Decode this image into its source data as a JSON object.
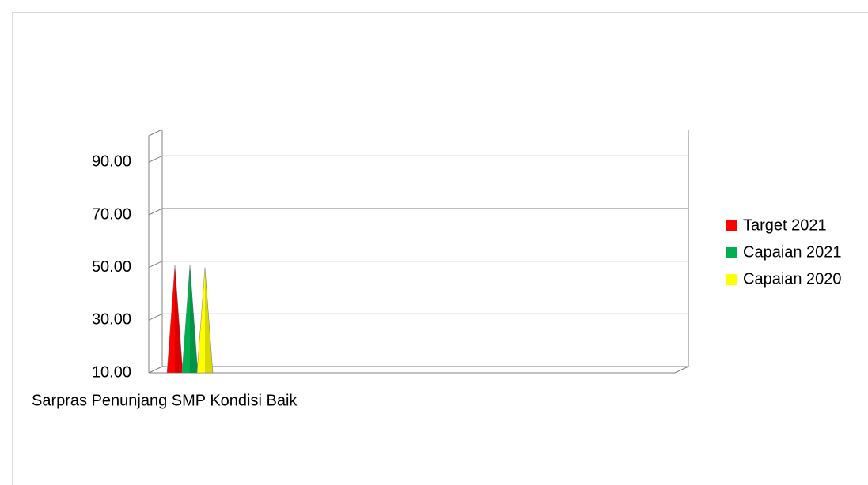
{
  "chart_data": {
    "type": "pyramid3d",
    "categories": [
      "Sarpras Penunjang SMP Kondisi Baik"
    ],
    "series": [
      {
        "name": "Target 2021",
        "color": "#ff0000",
        "values": [
          51
        ]
      },
      {
        "name": "Capaian 2021",
        "color": "#00b050",
        "values": [
          51
        ]
      },
      {
        "name": "Capaian 2020",
        "color": "#ffff00",
        "values": [
          50
        ]
      }
    ],
    "ylim": [
      10,
      100
    ],
    "yticks": [
      {
        "value": 10,
        "label": "10.00"
      },
      {
        "value": 30,
        "label": "30.00"
      },
      {
        "value": 50,
        "label": "50.00"
      },
      {
        "value": 70,
        "label": "70.00"
      },
      {
        "value": 90,
        "label": "90.00"
      }
    ],
    "grid": true,
    "legend": "right"
  }
}
